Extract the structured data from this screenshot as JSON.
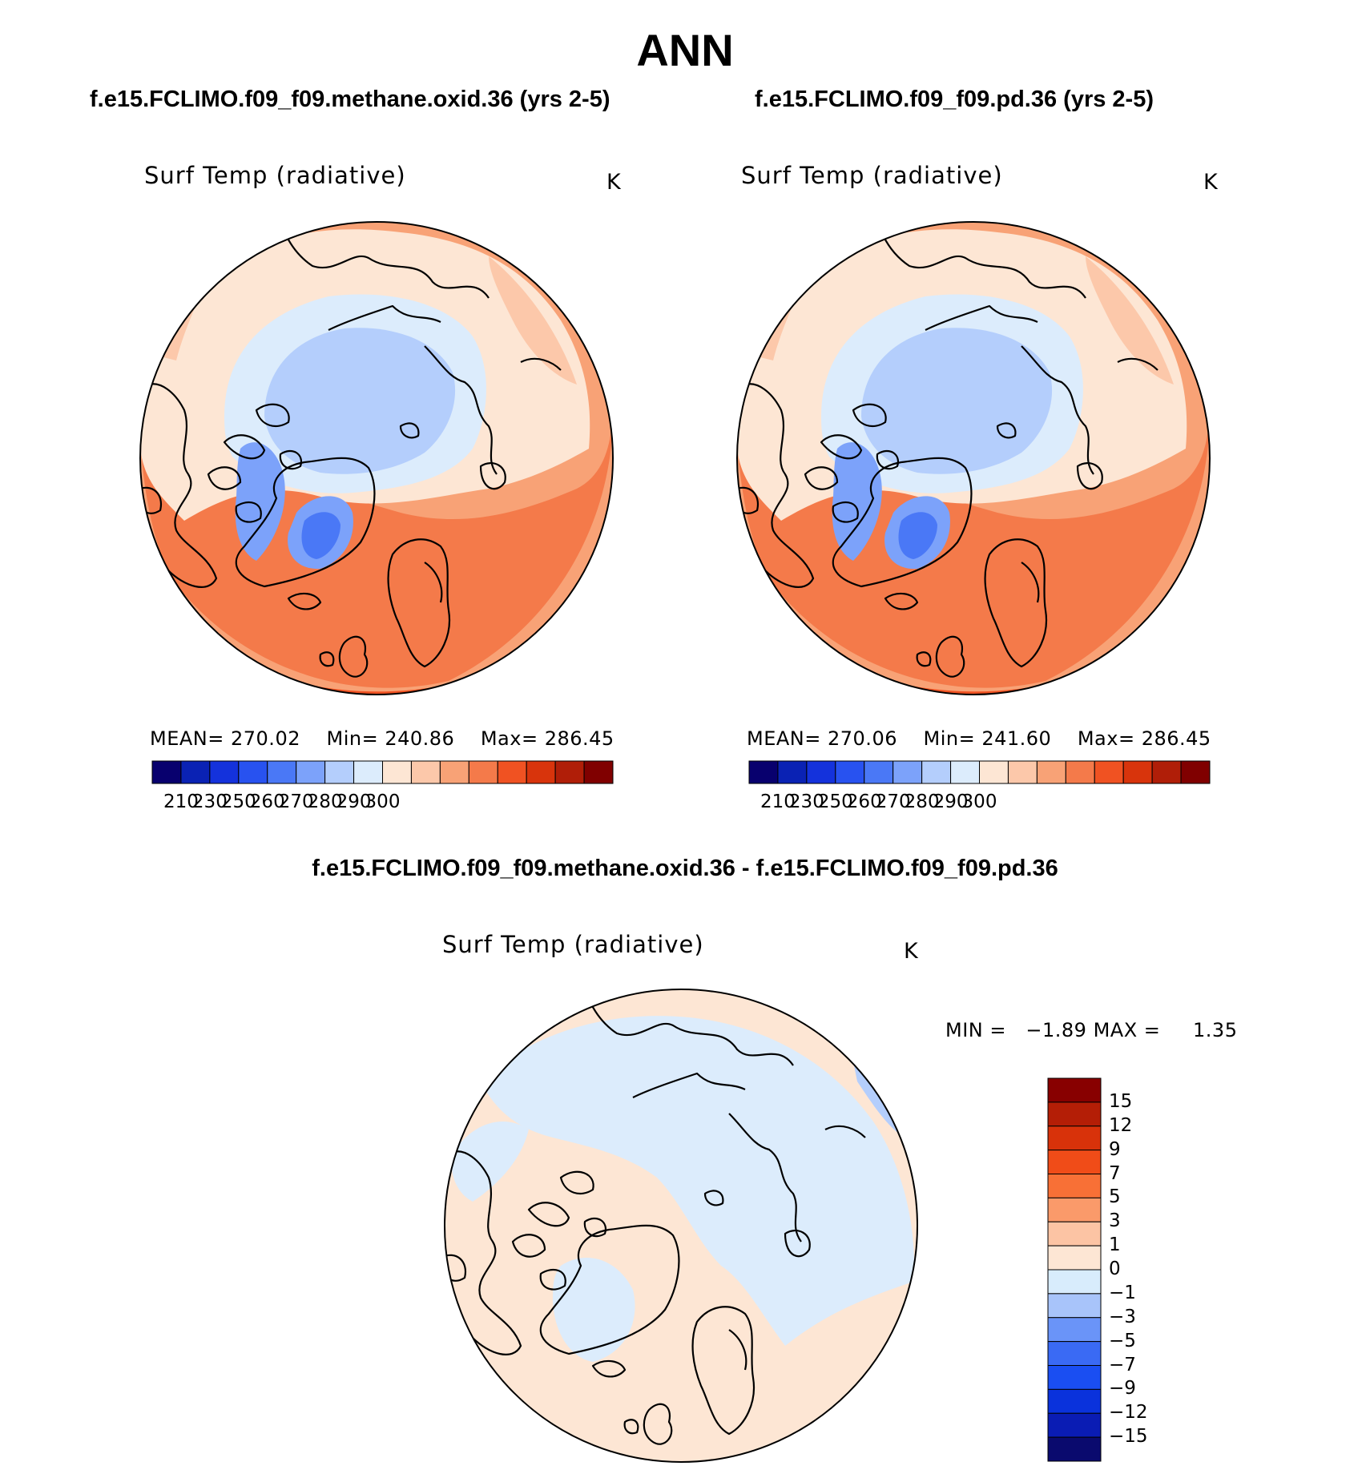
{
  "title": "ANN",
  "panels": [
    {
      "case_title": "f.e15.FCLIMO.f09_f09.methane.oxid.36 (yrs 2-5)",
      "variable": "Surf Temp (radiative)",
      "units": "K",
      "stats": {
        "mean_label": "MEAN=",
        "mean": "270.02",
        "min_label": "Min=",
        "min": "240.86",
        "max_label": "Max=",
        "max": "286.45"
      }
    },
    {
      "case_title": "f.e15.FCLIMO.f09_f09.pd.36 (yrs 2-5)",
      "variable": "Surf Temp (radiative)",
      "units": "K",
      "stats": {
        "mean_label": "MEAN=",
        "mean": "270.06",
        "min_label": "Min=",
        "min": "241.60",
        "max_label": "Max=",
        "max": "286.45"
      }
    }
  ],
  "abs_colorbar": {
    "colors": [
      "#08006e",
      "#0a22b4",
      "#1432dc",
      "#2852f0",
      "#4a78f6",
      "#7ca2fa",
      "#b4cefc",
      "#dcecfc",
      "#fde6d4",
      "#fcc8aa",
      "#f8a276",
      "#f47a4a",
      "#f05222",
      "#d8340c",
      "#b01e08",
      "#800000"
    ],
    "tick_labels": [
      "210",
      "230",
      "250",
      "260",
      "270",
      "280",
      "290",
      "300"
    ]
  },
  "diff_panel": {
    "title": "f.e15.FCLIMO.f09_f09.methane.oxid.36 - f.e15.FCLIMO.f09_f09.pd.36",
    "variable": "Surf Temp (radiative)",
    "units": "K",
    "stats": {
      "min_label": "MIN =",
      "min": "−1.89",
      "max_label": "MAX =",
      "max": "1.35"
    }
  },
  "diff_colorbar": {
    "colors": [
      "#0a0a6e",
      "#0a1cb4",
      "#0a32dc",
      "#1a4ef2",
      "#3a6af4",
      "#6a94f8",
      "#a8c4fa",
      "#d8ecfc",
      "#fde6d4",
      "#fcc4a4",
      "#fa9a6a",
      "#f87036",
      "#f04c18",
      "#d8320a",
      "#b41e06",
      "#880000"
    ],
    "tick_labels": [
      "15",
      "12",
      "9",
      "7",
      "5",
      "3",
      "1",
      "0",
      "−1",
      "−3",
      "−5",
      "−7",
      "−9",
      "−12",
      "−15"
    ]
  }
}
